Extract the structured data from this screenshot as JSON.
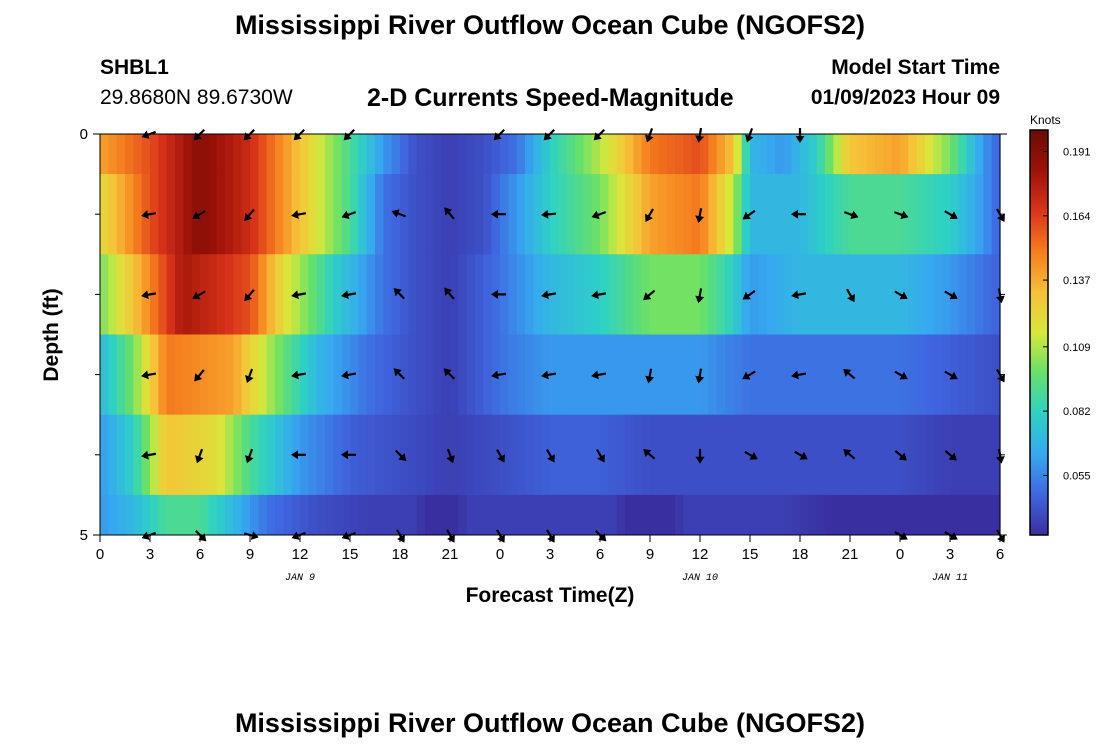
{
  "header": {
    "main_title": "Mississippi River Outflow Ocean Cube (NGOFS2)",
    "station_id": "SHBL1",
    "station_coords": "29.8680N  89.6730W",
    "product_title": "2-D Currents Speed-Magnitude",
    "model_start_label": "Model Start Time",
    "model_start_value": "01/09/2023 Hour 09"
  },
  "footer": {
    "main_title": "Mississippi River Outflow Ocean Cube (NGOFS2)"
  },
  "chart_data": {
    "type": "heatmap",
    "xlabel": "Forecast Time(Z)",
    "ylabel": "Depth (ft)",
    "x_ticks": [
      "0",
      "3",
      "6",
      "9",
      "12",
      "15",
      "18",
      "21",
      "0",
      "3",
      "6",
      "9",
      "12",
      "15",
      "18",
      "21",
      "0",
      "3",
      "6"
    ],
    "y_tick_labels": [
      {
        "depth": 0,
        "label": "0"
      },
      {
        "depth": 5,
        "label": "5"
      }
    ],
    "y_minor_ticks": [
      1,
      2,
      3,
      4
    ],
    "xlim": [
      0,
      54
    ],
    "ylim": [
      5,
      0
    ],
    "date_labels": [
      {
        "x": 12,
        "label": "JAN 9"
      },
      {
        "x": 36,
        "label": "JAN 10"
      },
      {
        "x": 51,
        "label": "JAN 11"
      }
    ],
    "colorbar": {
      "unit": "Knots",
      "range": [
        0.03,
        0.2
      ],
      "ticks": [
        "0.191",
        "0.164",
        "0.137",
        "0.109",
        "0.082",
        "0.055"
      ],
      "tick_values": [
        0.191,
        0.164,
        0.137,
        0.109,
        0.082,
        0.055
      ],
      "colors": [
        "#3a2fa0",
        "#3f66e0",
        "#36a9f0",
        "#2ed1c4",
        "#66e06a",
        "#d7e83a",
        "#f7c038",
        "#f57d1e",
        "#d9341a",
        "#9e1208",
        "#6a0c05"
      ]
    },
    "layers": [
      {
        "depth_top": 0,
        "depth_bottom": 0.5
      },
      {
        "depth_top": 0.5,
        "depth_bottom": 1.5
      },
      {
        "depth_top": 1.5,
        "depth_bottom": 2.5
      },
      {
        "depth_top": 2.5,
        "depth_bottom": 3.5
      },
      {
        "depth_top": 3.5,
        "depth_bottom": 4.5
      },
      {
        "depth_top": 4.5,
        "depth_bottom": 5
      }
    ],
    "speed_keyframes": [
      [
        [
          0,
          0.14
        ],
        [
          3,
          0.16
        ],
        [
          6,
          0.19
        ],
        [
          9,
          0.17
        ],
        [
          12,
          0.13
        ],
        [
          15,
          0.09
        ],
        [
          17,
          0.06
        ],
        [
          19,
          0.04
        ],
        [
          21,
          0.035
        ],
        [
          23,
          0.04
        ],
        [
          25,
          0.05
        ],
        [
          27,
          0.08
        ],
        [
          30,
          0.11
        ],
        [
          33,
          0.15
        ],
        [
          36,
          0.16
        ],
        [
          38,
          0.13
        ],
        [
          39,
          0.07
        ],
        [
          41,
          0.06
        ],
        [
          43,
          0.08
        ],
        [
          45,
          0.13
        ],
        [
          48,
          0.14
        ],
        [
          51,
          0.1
        ],
        [
          53,
          0.06
        ],
        [
          54,
          0.045
        ]
      ],
      [
        [
          0,
          0.12
        ],
        [
          3,
          0.16
        ],
        [
          6,
          0.19
        ],
        [
          9,
          0.17
        ],
        [
          12,
          0.13
        ],
        [
          15,
          0.09
        ],
        [
          17,
          0.05
        ],
        [
          19,
          0.04
        ],
        [
          21,
          0.035
        ],
        [
          23,
          0.04
        ],
        [
          25,
          0.06
        ],
        [
          27,
          0.08
        ],
        [
          30,
          0.1
        ],
        [
          33,
          0.14
        ],
        [
          36,
          0.15
        ],
        [
          38,
          0.11
        ],
        [
          39,
          0.07
        ],
        [
          42,
          0.07
        ],
        [
          45,
          0.09
        ],
        [
          48,
          0.09
        ],
        [
          51,
          0.08
        ],
        [
          53,
          0.06
        ],
        [
          54,
          0.045
        ]
      ],
      [
        [
          0,
          0.1
        ],
        [
          2,
          0.13
        ],
        [
          5,
          0.18
        ],
        [
          9,
          0.16
        ],
        [
          11,
          0.12
        ],
        [
          14,
          0.08
        ],
        [
          17,
          0.05
        ],
        [
          19,
          0.04
        ],
        [
          21,
          0.035
        ],
        [
          24,
          0.05
        ],
        [
          27,
          0.07
        ],
        [
          30,
          0.08
        ],
        [
          33,
          0.1
        ],
        [
          36,
          0.1
        ],
        [
          38,
          0.08
        ],
        [
          39,
          0.06
        ],
        [
          42,
          0.07
        ],
        [
          45,
          0.07
        ],
        [
          48,
          0.07
        ],
        [
          51,
          0.06
        ],
        [
          53,
          0.05
        ],
        [
          54,
          0.045
        ]
      ],
      [
        [
          0,
          0.07
        ],
        [
          2,
          0.1
        ],
        [
          4,
          0.15
        ],
        [
          8,
          0.14
        ],
        [
          10,
          0.11
        ],
        [
          13,
          0.07
        ],
        [
          16,
          0.05
        ],
        [
          19,
          0.04
        ],
        [
          21,
          0.035
        ],
        [
          24,
          0.05
        ],
        [
          27,
          0.06
        ],
        [
          30,
          0.06
        ],
        [
          33,
          0.06
        ],
        [
          36,
          0.06
        ],
        [
          39,
          0.05
        ],
        [
          42,
          0.05
        ],
        [
          45,
          0.05
        ],
        [
          48,
          0.05
        ],
        [
          51,
          0.045
        ],
        [
          54,
          0.04
        ]
      ],
      [
        [
          0,
          0.06
        ],
        [
          2,
          0.08
        ],
        [
          4,
          0.13
        ],
        [
          7,
          0.12
        ],
        [
          9,
          0.09
        ],
        [
          12,
          0.06
        ],
        [
          15,
          0.045
        ],
        [
          18,
          0.04
        ],
        [
          21,
          0.035
        ],
        [
          24,
          0.04
        ],
        [
          27,
          0.045
        ],
        [
          30,
          0.045
        ],
        [
          33,
          0.04
        ],
        [
          36,
          0.04
        ],
        [
          39,
          0.04
        ],
        [
          42,
          0.04
        ],
        [
          45,
          0.04
        ],
        [
          48,
          0.04
        ],
        [
          51,
          0.035
        ],
        [
          54,
          0.035
        ]
      ],
      [
        [
          0,
          0.06
        ],
        [
          2,
          0.07
        ],
        [
          4,
          0.09
        ],
        [
          6,
          0.09
        ],
        [
          8,
          0.07
        ],
        [
          10,
          0.05
        ],
        [
          13,
          0.04
        ],
        [
          16,
          0.035
        ],
        [
          19,
          0.035
        ],
        [
          20.5,
          0.02
        ],
        [
          21,
          0.025
        ],
        [
          22,
          0.035
        ],
        [
          25,
          0.035
        ],
        [
          28,
          0.035
        ],
        [
          31,
          0.035
        ],
        [
          32.5,
          0.02
        ],
        [
          33,
          0.005
        ],
        [
          33.5,
          0.02
        ],
        [
          35,
          0.035
        ],
        [
          38,
          0.035
        ],
        [
          41,
          0.035
        ],
        [
          44,
          0.03
        ],
        [
          47,
          0.03
        ],
        [
          50,
          0.03
        ],
        [
          54,
          0.03
        ]
      ]
    ],
    "vectors": {
      "x": [
        3,
        6,
        9,
        12,
        15,
        18,
        21,
        24,
        27,
        30,
        33,
        36,
        39,
        42,
        45,
        48,
        51,
        54
      ],
      "depths": [
        0,
        1,
        2,
        3,
        4,
        5
      ],
      "angles_deg": [
        [
          200,
          225,
          225,
          225,
          225,
          -1,
          -1,
          225,
          225,
          225,
          250,
          260,
          250,
          270,
          -1,
          -1,
          -1,
          -1
        ],
        [
          190,
          210,
          230,
          190,
          200,
          160,
          130,
          180,
          185,
          200,
          240,
          260,
          215,
          180,
          340,
          340,
          330,
          300
        ],
        [
          190,
          210,
          230,
          190,
          190,
          135,
          130,
          180,
          190,
          190,
          220,
          260,
          215,
          190,
          300,
          330,
          330,
          280
        ],
        [
          190,
          230,
          250,
          190,
          190,
          135,
          135,
          190,
          190,
          190,
          260,
          260,
          210,
          190,
          140,
          330,
          330,
          300
        ],
        [
          190,
          250,
          250,
          180,
          180,
          315,
          290,
          300,
          300,
          300,
          140,
          270,
          330,
          330,
          140,
          320,
          320,
          280
        ],
        [
          200,
          315,
          345,
          200,
          200,
          300,
          300,
          300,
          300,
          315,
          -1,
          -1,
          -1,
          -1,
          -1,
          330,
          330,
          300
        ]
      ]
    }
  }
}
